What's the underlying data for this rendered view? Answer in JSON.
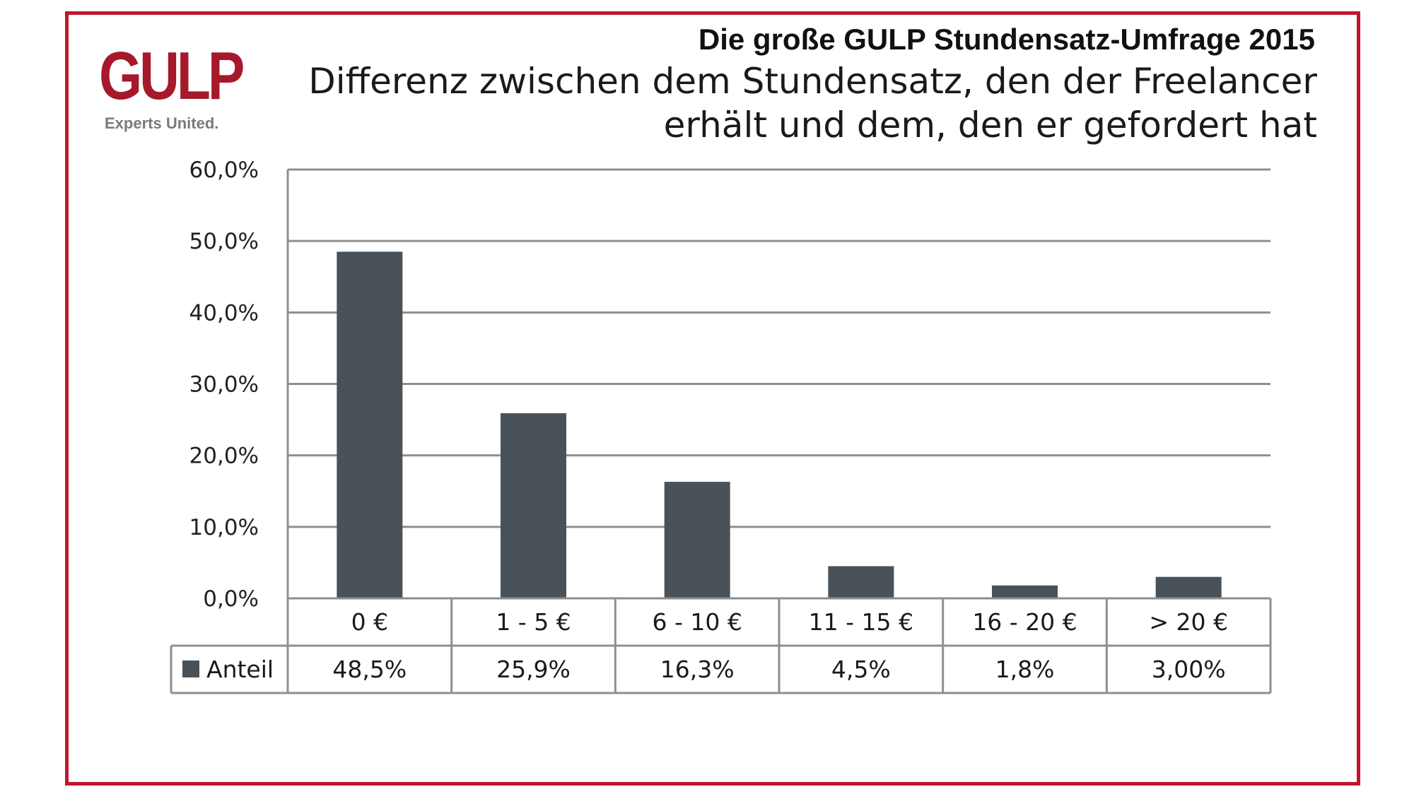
{
  "logo": {
    "word": "GULP",
    "tagline": "Experts United."
  },
  "colors": {
    "frame": "#c0162c",
    "brand": "#a5192b",
    "bar": "#4a5259",
    "grid": "#8f8f8f"
  },
  "header": {
    "title": "Die große GULP Stundensatz-Umfrage 2015",
    "subtitle_line1": "Differenz zwischen dem Stundensatz, den der Freelancer",
    "subtitle_line2": "erhält und dem, den er gefordert hat"
  },
  "chart_data": {
    "type": "bar",
    "title": "Die große GULP Stundensatz-Umfrage 2015",
    "subtitle": "Differenz zwischen dem Stundensatz, den der Freelancer erhält und dem, den er gefordert hat",
    "categories": [
      "0 €",
      "1 - 5 €",
      "6 - 10 €",
      "11 - 15 €",
      "16 - 20 €",
      "> 20 €"
    ],
    "series": [
      {
        "name": "Anteil",
        "values": [
          48.5,
          25.9,
          16.3,
          4.5,
          1.8,
          3.0
        ]
      }
    ],
    "value_labels": [
      "48,5%",
      "25,9%",
      "16,3%",
      "4,5%",
      "1,8%",
      "3,00%"
    ],
    "y_ticks": [
      "0,0%",
      "10,0%",
      "20,0%",
      "30,0%",
      "40,0%",
      "50,0%",
      "60,0%"
    ],
    "ylim": [
      0,
      60
    ],
    "grid": true,
    "legend": "data-table-left"
  }
}
